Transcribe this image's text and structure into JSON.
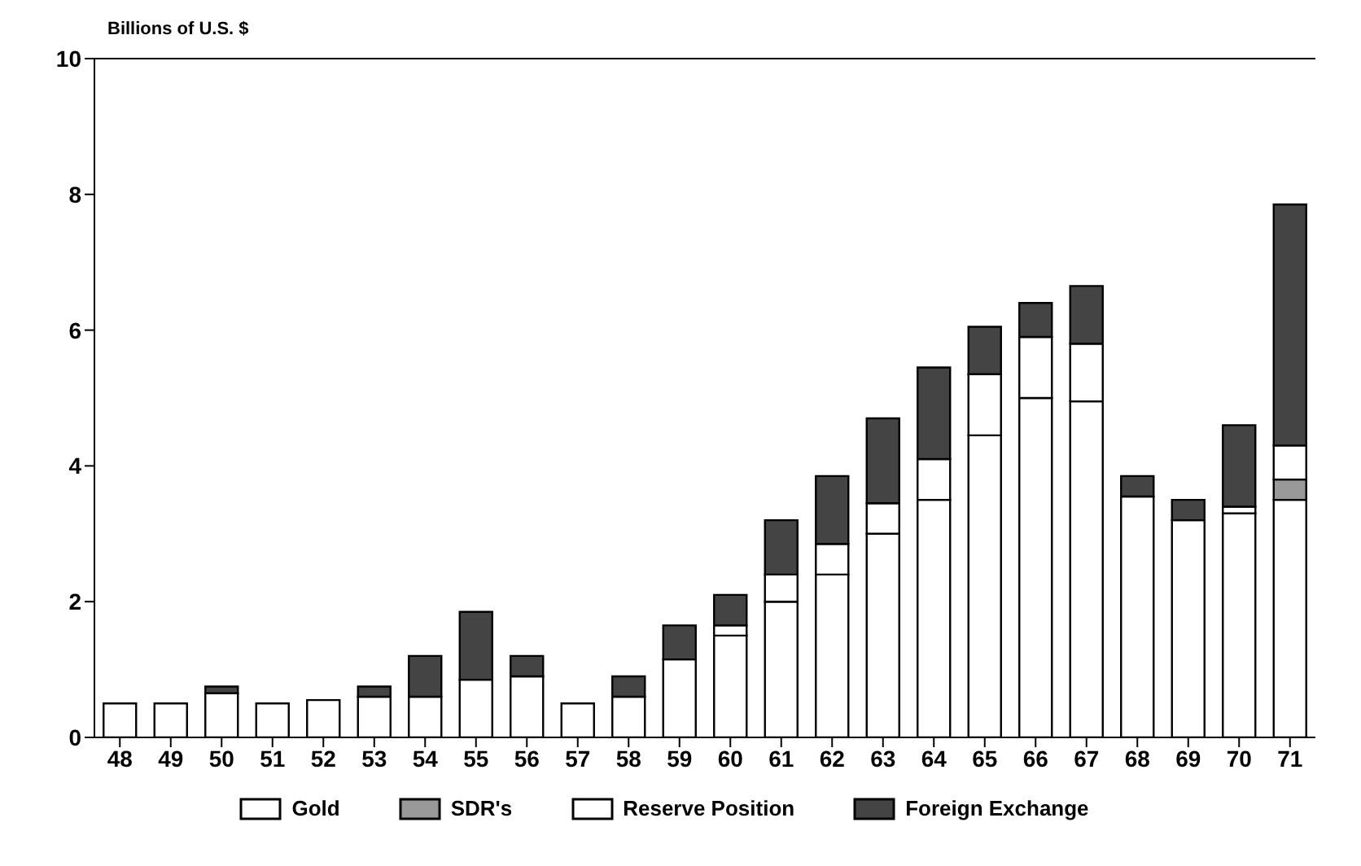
{
  "chart_data": {
    "type": "bar",
    "stacked": true,
    "ylabel": "Billions of U.S. $",
    "categories": [
      "48",
      "49",
      "50",
      "51",
      "52",
      "53",
      "54",
      "55",
      "56",
      "57",
      "58",
      "59",
      "60",
      "61",
      "62",
      "63",
      "64",
      "65",
      "66",
      "67",
      "68",
      "69",
      "70",
      "71"
    ],
    "series": [
      {
        "name": "Gold",
        "color": "#ffffff",
        "values": [
          0.5,
          0.5,
          0.65,
          0.5,
          0.55,
          0.6,
          0.6,
          0.85,
          0.9,
          0.5,
          0.6,
          1.15,
          1.5,
          2.0,
          2.4,
          3.0,
          3.5,
          4.45,
          5.0,
          4.95,
          3.55,
          3.2,
          3.3,
          3.5
        ]
      },
      {
        "name": "SDR's",
        "color": "#999999",
        "values": [
          0,
          0,
          0,
          0,
          0,
          0,
          0,
          0,
          0,
          0,
          0,
          0,
          0,
          0,
          0,
          0,
          0,
          0,
          0,
          0,
          0,
          0,
          0,
          0.3
        ]
      },
      {
        "name": "Reserve Position",
        "color": "#ffffff",
        "values": [
          0,
          0,
          0,
          0,
          0,
          0,
          0,
          0,
          0,
          0,
          0,
          0,
          0.15,
          0.4,
          0.45,
          0.45,
          0.6,
          0.9,
          0.9,
          0.85,
          0,
          0,
          0.1,
          0.5
        ]
      },
      {
        "name": "Foreign Exchange",
        "color": "#444444",
        "values": [
          0,
          0,
          0.1,
          0,
          0,
          0.15,
          0.6,
          1.0,
          0.3,
          0,
          0.3,
          0.5,
          0.45,
          0.8,
          1.0,
          1.25,
          1.35,
          0.7,
          0.5,
          0.85,
          0.3,
          0.3,
          1.2,
          3.55
        ]
      }
    ],
    "ylim": [
      0,
      10
    ],
    "yticks": [
      0,
      2,
      4,
      6,
      8,
      10
    ],
    "legend": "bottom"
  }
}
